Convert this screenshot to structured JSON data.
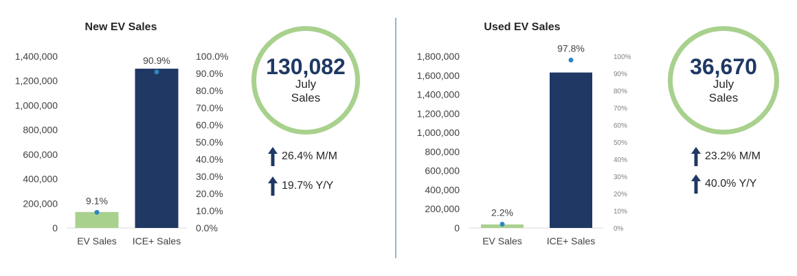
{
  "colors": {
    "ev_bar": "#a9d18e",
    "ice_bar": "#1f3864",
    "marker": "#2e86c1",
    "ring": "#a9d18e"
  },
  "chart_data": [
    {
      "type": "bar",
      "title": "New EV Sales",
      "categories": [
        "EV Sales",
        "ICE+ Sales"
      ],
      "values": [
        130082,
        1299000
      ],
      "ylim": [
        0,
        1400000
      ],
      "yticks": [
        "0",
        "200,000",
        "400,000",
        "600,000",
        "800,000",
        "1,000,000",
        "1,200,000",
        "1,400,000"
      ],
      "share_pct": [
        9.1,
        90.9
      ],
      "share_labels": [
        "9.1%",
        "90.9%"
      ],
      "y2lim": [
        0,
        100
      ],
      "y2ticks": [
        "0.0%",
        "10.0%",
        "20.0%",
        "30.0%",
        "40.0%",
        "50.0%",
        "60.0%",
        "70.0%",
        "80.0%",
        "90.0%",
        "100.0%"
      ],
      "grid": false
    },
    {
      "type": "bar",
      "title": "Used EV Sales",
      "categories": [
        "EV Sales",
        "ICE+ Sales"
      ],
      "values": [
        36670,
        1630000
      ],
      "ylim": [
        0,
        1800000
      ],
      "yticks": [
        "0",
        "200,000",
        "400,000",
        "600,000",
        "800,000",
        "1,000,000",
        "1,200,000",
        "1,400,000",
        "1,600,000",
        "1,800,000"
      ],
      "share_pct": [
        2.2,
        97.8
      ],
      "share_labels": [
        "2.2%",
        "97.8%"
      ],
      "y2lim": [
        0,
        100
      ],
      "y2ticks": [
        "0%",
        "10%",
        "20%",
        "30%",
        "40%",
        "50%",
        "60%",
        "70%",
        "80%",
        "90%",
        "100%"
      ],
      "grid": false
    }
  ],
  "new_ev": {
    "kpi_value": "130,082",
    "kpi_label_1": "July",
    "kpi_label_2": "Sales",
    "trend_mm": "26.4% M/M",
    "trend_yy": "19.7% Y/Y"
  },
  "used_ev": {
    "kpi_value": "36,670",
    "kpi_label_1": "July",
    "kpi_label_2": "Sales",
    "trend_mm": "23.2% M/M",
    "trend_yy": "40.0% Y/Y"
  }
}
